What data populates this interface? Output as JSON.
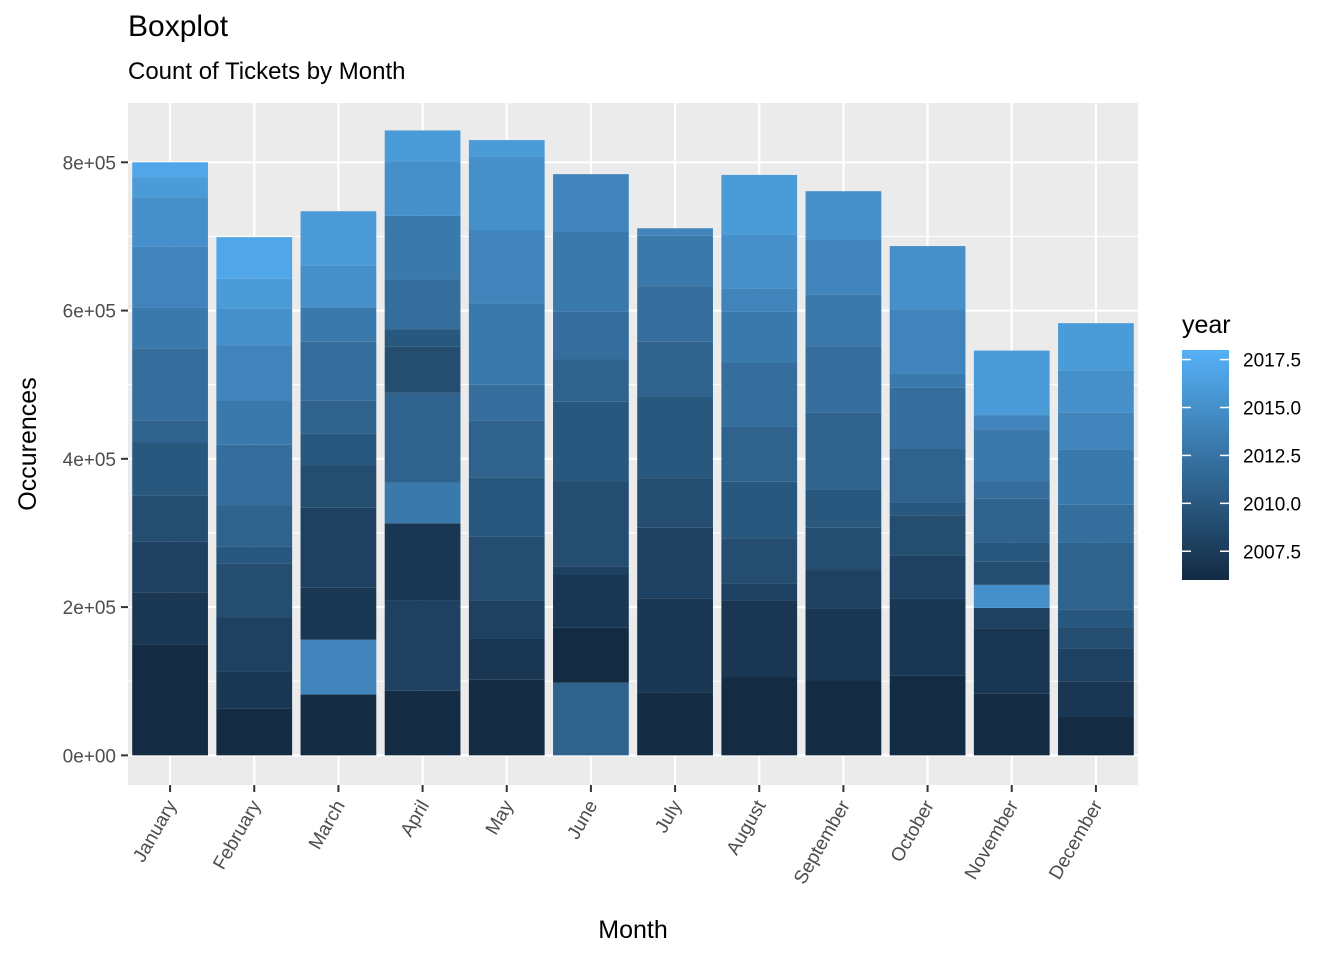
{
  "chart_data": {
    "type": "bar",
    "stacked": true,
    "title": "Boxplot",
    "subtitle": "Count of Tickets by Month",
    "xlabel": "Month",
    "ylabel": "Occurences",
    "categories": [
      "January",
      "February",
      "March",
      "April",
      "May",
      "June",
      "July",
      "August",
      "September",
      "October",
      "November",
      "December"
    ],
    "ylim": [
      -40000,
      880000
    ],
    "yticks": [
      0,
      200000,
      400000,
      600000,
      800000
    ],
    "ytick_labels": [
      "0e+00",
      "2e+05",
      "4e+05",
      "6e+05",
      "8e+05"
    ],
    "grid": true,
    "legend": {
      "title": "year",
      "placement": "right",
      "range": [
        2006,
        2018
      ],
      "breaks": [
        2007.5,
        2010.0,
        2012.5,
        2015.0,
        2017.5
      ],
      "labels": [
        "2007.5",
        "2010.0",
        "2012.5",
        "2015.0",
        "2017.5"
      ],
      "low_color": "#132b43",
      "high_color": "#56b1f7"
    },
    "stacks": [
      {
        "category": "January",
        "segments": [
          {
            "year": 2006,
            "value": 150000
          },
          {
            "year": 2007,
            "value": 70000
          },
          {
            "year": 2008,
            "value": 68000
          },
          {
            "year": 2009,
            "value": 62000
          },
          {
            "year": 2010,
            "value": 72000
          },
          {
            "year": 2011,
            "value": 30000
          },
          {
            "year": 2012,
            "value": 97000
          },
          {
            "year": 2013,
            "value": 55000
          },
          {
            "year": 2014,
            "value": 82000
          },
          {
            "year": 2015,
            "value": 67000
          },
          {
            "year": 2016,
            "value": 27000
          },
          {
            "year": 2017,
            "value": 20000
          }
        ]
      },
      {
        "category": "February",
        "segments": [
          {
            "year": 2006,
            "value": 63000
          },
          {
            "year": 2007,
            "value": 50000
          },
          {
            "year": 2008,
            "value": 73000
          },
          {
            "year": 2009,
            "value": 73000
          },
          {
            "year": 2010,
            "value": 23000
          },
          {
            "year": 2011,
            "value": 55000
          },
          {
            "year": 2012,
            "value": 82000
          },
          {
            "year": 2013,
            "value": 59000
          },
          {
            "year": 2014,
            "value": 75000
          },
          {
            "year": 2015,
            "value": 50000
          },
          {
            "year": 2016,
            "value": 40000
          },
          {
            "year": 2017,
            "value": 56000
          }
        ]
      },
      {
        "category": "March",
        "segments": [
          {
            "year": 2006,
            "value": 82000
          },
          {
            "year": 2014,
            "value": 74000
          },
          {
            "year": 2007,
            "value": 70000
          },
          {
            "year": 2008,
            "value": 108000
          },
          {
            "year": 2009,
            "value": 57000
          },
          {
            "year": 2010,
            "value": 43000
          },
          {
            "year": 2011,
            "value": 45000
          },
          {
            "year": 2012,
            "value": 79000
          },
          {
            "year": 2013,
            "value": 46000
          },
          {
            "year": 2015,
            "value": 57000
          },
          {
            "year": 2016,
            "value": 73000
          }
        ]
      },
      {
        "category": "April",
        "segments": [
          {
            "year": 2006,
            "value": 87000
          },
          {
            "year": 2008,
            "value": 122000
          },
          {
            "year": 2007,
            "value": 104000
          },
          {
            "year": 2013,
            "value": 55000
          },
          {
            "year": 2011,
            "value": 121000
          },
          {
            "year": 2009,
            "value": 62000
          },
          {
            "year": 2010,
            "value": 24000
          },
          {
            "year": 2012,
            "value": 67000
          },
          {
            "year": 2013,
            "value": 86000
          },
          {
            "year": 2015,
            "value": 73000
          },
          {
            "year": 2016,
            "value": 42000
          }
        ]
      },
      {
        "category": "May",
        "segments": [
          {
            "year": 2006,
            "value": 102000
          },
          {
            "year": 2007,
            "value": 55000
          },
          {
            "year": 2008,
            "value": 52000
          },
          {
            "year": 2009,
            "value": 86000
          },
          {
            "year": 2010,
            "value": 80000
          },
          {
            "year": 2011,
            "value": 77000
          },
          {
            "year": 2012,
            "value": 48000
          },
          {
            "year": 2013,
            "value": 110000
          },
          {
            "year": 2014,
            "value": 98000
          },
          {
            "year": 2015,
            "value": 100000
          },
          {
            "year": 2016,
            "value": 22000
          }
        ]
      },
      {
        "category": "June",
        "segments": [
          {
            "year": 2011,
            "value": 98000
          },
          {
            "year": 2006,
            "value": 74000
          },
          {
            "year": 2007,
            "value": 72000
          },
          {
            "year": 2008,
            "value": 11000
          },
          {
            "year": 2009,
            "value": 115000
          },
          {
            "year": 2010,
            "value": 107000
          },
          {
            "year": 2011,
            "value": 57000
          },
          {
            "year": 2012,
            "value": 65000
          },
          {
            "year": 2013,
            "value": 107000
          },
          {
            "year": 2014,
            "value": 78000
          }
        ]
      },
      {
        "category": "July",
        "segments": [
          {
            "year": 2006,
            "value": 85000
          },
          {
            "year": 2007,
            "value": 127000
          },
          {
            "year": 2008,
            "value": 95000
          },
          {
            "year": 2009,
            "value": 67000
          },
          {
            "year": 2010,
            "value": 110000
          },
          {
            "year": 2011,
            "value": 74000
          },
          {
            "year": 2012,
            "value": 75000
          },
          {
            "year": 2013,
            "value": 68000
          },
          {
            "year": 2014,
            "value": 10000
          }
        ]
      },
      {
        "category": "August",
        "segments": [
          {
            "year": 2006,
            "value": 105000
          },
          {
            "year": 2007,
            "value": 104000
          },
          {
            "year": 2008,
            "value": 23000
          },
          {
            "year": 2009,
            "value": 61000
          },
          {
            "year": 2010,
            "value": 76000
          },
          {
            "year": 2011,
            "value": 74000
          },
          {
            "year": 2012,
            "value": 87000
          },
          {
            "year": 2013,
            "value": 69000
          },
          {
            "year": 2014,
            "value": 31000
          },
          {
            "year": 2015,
            "value": 72000
          },
          {
            "year": 2016,
            "value": 81000
          }
        ]
      },
      {
        "category": "September",
        "segments": [
          {
            "year": 2006,
            "value": 101000
          },
          {
            "year": 2007,
            "value": 97000
          },
          {
            "year": 2008,
            "value": 52000
          },
          {
            "year": 2009,
            "value": 57000
          },
          {
            "year": 2010,
            "value": 51000
          },
          {
            "year": 2011,
            "value": 104000
          },
          {
            "year": 2012,
            "value": 90000
          },
          {
            "year": 2013,
            "value": 70000
          },
          {
            "year": 2014,
            "value": 74000
          },
          {
            "year": 2015,
            "value": 65000
          }
        ]
      },
      {
        "category": "October",
        "segments": [
          {
            "year": 2006,
            "value": 108000
          },
          {
            "year": 2007,
            "value": 103000
          },
          {
            "year": 2008,
            "value": 58000
          },
          {
            "year": 2009,
            "value": 55000
          },
          {
            "year": 2010,
            "value": 17000
          },
          {
            "year": 2011,
            "value": 73000
          },
          {
            "year": 2012,
            "value": 82000
          },
          {
            "year": 2013,
            "value": 19000
          },
          {
            "year": 2014,
            "value": 87000
          },
          {
            "year": 2015,
            "value": 85000
          }
        ]
      },
      {
        "category": "November",
        "segments": [
          {
            "year": 2006,
            "value": 83000
          },
          {
            "year": 2007,
            "value": 88000
          },
          {
            "year": 2008,
            "value": 28000
          },
          {
            "year": 2015,
            "value": 31000
          },
          {
            "year": 2009,
            "value": 31000
          },
          {
            "year": 2010,
            "value": 26000
          },
          {
            "year": 2011,
            "value": 59000
          },
          {
            "year": 2012,
            "value": 24000
          },
          {
            "year": 2013,
            "value": 70000
          },
          {
            "year": 2014,
            "value": 19000
          },
          {
            "year": 2016,
            "value": 87000
          }
        ]
      },
      {
        "category": "December",
        "segments": [
          {
            "year": 2006,
            "value": 53000
          },
          {
            "year": 2007,
            "value": 47000
          },
          {
            "year": 2008,
            "value": 44000
          },
          {
            "year": 2009,
            "value": 29000
          },
          {
            "year": 2010,
            "value": 24000
          },
          {
            "year": 2011,
            "value": 90000
          },
          {
            "year": 2012,
            "value": 51000
          },
          {
            "year": 2013,
            "value": 74000
          },
          {
            "year": 2014,
            "value": 50000
          },
          {
            "year": 2015,
            "value": 57000
          },
          {
            "year": 2016,
            "value": 64000
          }
        ]
      }
    ]
  }
}
